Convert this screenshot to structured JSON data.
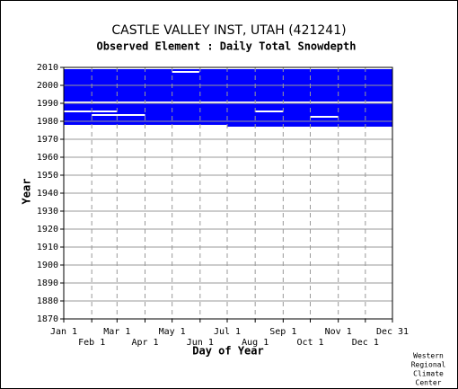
{
  "chart_data": {
    "type": "availability",
    "title": "CASTLE VALLEY INST, UTAH   (421241)",
    "subtitle": "Observed Element : Daily Total Snowdepth",
    "xlabel": "Day of Year",
    "ylabel": "Year",
    "credit": [
      "Western",
      "Regional",
      "Climate",
      "Center"
    ],
    "xlim": [
      1,
      365
    ],
    "xticks": [
      {
        "value": 1,
        "label": "Jan 1"
      },
      {
        "value": 32,
        "label": "Feb 1"
      },
      {
        "value": 60,
        "label": "Mar 1"
      },
      {
        "value": 91,
        "label": "Apr 1"
      },
      {
        "value": 121,
        "label": "May 1"
      },
      {
        "value": 152,
        "label": "Jun 1"
      },
      {
        "value": 182,
        "label": "Jul 1"
      },
      {
        "value": 213,
        "label": "Aug 1"
      },
      {
        "value": 244,
        "label": "Sep 1"
      },
      {
        "value": 274,
        "label": "Oct 1"
      },
      {
        "value": 305,
        "label": "Nov 1"
      },
      {
        "value": 335,
        "label": "Dec 1"
      },
      {
        "value": 365,
        "label": "Dec 31"
      }
    ],
    "ylim": [
      1870,
      2010
    ],
    "yticks": [
      1870,
      1880,
      1890,
      1900,
      1910,
      1920,
      1930,
      1940,
      1950,
      1960,
      1970,
      1980,
      1990,
      2000,
      2010
    ],
    "data_color": "#0000ff",
    "gap_color": "#ffffff",
    "data_blocks": [
      [
        1,
        365,
        1977,
        2009
      ]
    ],
    "gap_blocks": [
      [
        121,
        151,
        2007,
        2008
      ],
      [
        1,
        365,
        1990,
        1991
      ],
      [
        1,
        60,
        1985,
        1986
      ],
      [
        213,
        244,
        1985,
        1986
      ],
      [
        32,
        91,
        1983,
        1984
      ],
      [
        274,
        305,
        1982,
        1983
      ],
      [
        1,
        182,
        1977,
        1978
      ]
    ]
  }
}
